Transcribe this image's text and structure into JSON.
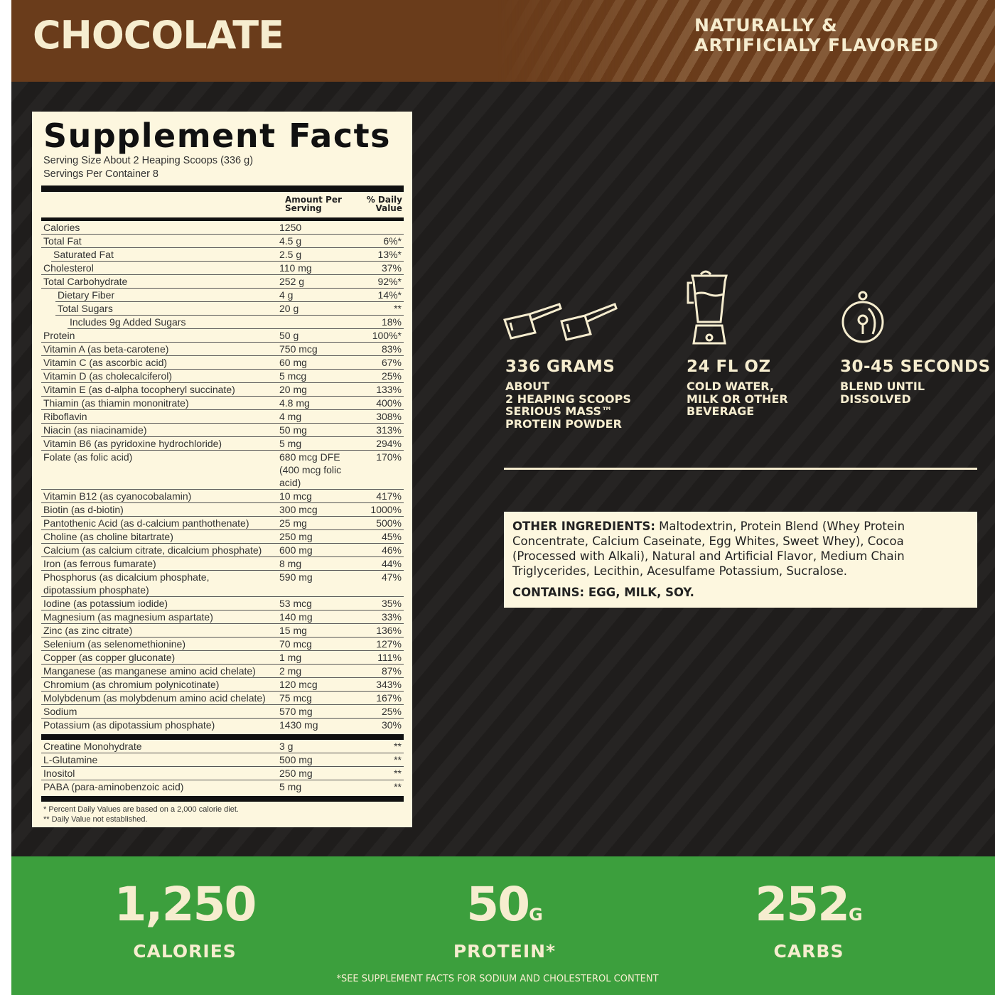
{
  "header": {
    "flavor": "CHOCOLATE",
    "note_line1": "NATURALLY &",
    "note_line2": "ARTIFICIALY FLAVORED"
  },
  "facts": {
    "title": "Supplement Facts",
    "serving_size": "Serving Size About 2 Heaping Scoops (336 g)",
    "servings_per_container": "Servings Per Container 8",
    "col_amount_1": "Amount Per",
    "col_amount_2": "Serving",
    "col_dv_1": "% Daily",
    "col_dv_2": "Value",
    "rows": [
      {
        "name": "Calories",
        "amount": "1250",
        "dv": "",
        "indent": 0
      },
      {
        "name": "Total Fat",
        "amount": "4.5 g",
        "dv": "6%*",
        "indent": 0
      },
      {
        "name": "Saturated Fat",
        "amount": "2.5 g",
        "dv": "13%*",
        "indent": 1
      },
      {
        "name": "Cholesterol",
        "amount": "110 mg",
        "dv": "37%",
        "indent": 0
      },
      {
        "name": "Total Carbohydrate",
        "amount": "252 g",
        "dv": "92%*",
        "indent": 0
      },
      {
        "name": "Dietary Fiber",
        "amount": "4 g",
        "dv": "14%*",
        "indent": 2
      },
      {
        "name": "Total Sugars",
        "amount": "20 g",
        "dv": "**",
        "indent": 2
      },
      {
        "name": "Includes 9g Added Sugars",
        "amount": "",
        "dv": "18%",
        "indent": 3
      },
      {
        "name": "Protein",
        "amount": "50 g",
        "dv": "100%*",
        "indent": 0
      },
      {
        "name": "Vitamin A (as beta-carotene)",
        "amount": "750 mcg",
        "dv": "83%",
        "indent": 0
      },
      {
        "name": "Vitamin C (as ascorbic acid)",
        "amount": "60 mg",
        "dv": "67%",
        "indent": 0
      },
      {
        "name": "Vitamin D (as cholecalciferol)",
        "amount": "5 mcg",
        "dv": "25%",
        "indent": 0
      },
      {
        "name": "Vitamin E (as d-alpha tocopheryl succinate)",
        "amount": "20 mg",
        "dv": "133%",
        "indent": 0
      },
      {
        "name": "Thiamin (as thiamin mononitrate)",
        "amount": "4.8 mg",
        "dv": "400%",
        "indent": 0
      },
      {
        "name": "Riboflavin",
        "amount": "4 mg",
        "dv": "308%",
        "indent": 0
      },
      {
        "name": "Niacin (as niacinamide)",
        "amount": "50 mg",
        "dv": "313%",
        "indent": 0
      },
      {
        "name": "Vitamin B6 (as pyridoxine hydrochloride)",
        "amount": "5 mg",
        "dv": "294%",
        "indent": 0
      },
      {
        "name": "Folate (as folic acid)",
        "amount": "680 mcg DFE\n(400 mcg folic acid)",
        "dv": "170%",
        "indent": 0
      },
      {
        "name": "Vitamin B12 (as cyanocobalamin)",
        "amount": "10 mcg",
        "dv": "417%",
        "indent": 0
      },
      {
        "name": "Biotin (as d-biotin)",
        "amount": "300 mcg",
        "dv": "1000%",
        "indent": 0
      },
      {
        "name": "Pantothenic Acid (as d-calcium panthothenate)",
        "amount": "25 mg",
        "dv": "500%",
        "indent": 0
      },
      {
        "name": "Choline (as choline bitartrate)",
        "amount": "250 mg",
        "dv": "45%",
        "indent": 0
      },
      {
        "name": "Calcium (as calcium citrate, dicalcium phosphate)",
        "amount": "600 mg",
        "dv": "46%",
        "indent": 0
      },
      {
        "name": "Iron (as ferrous fumarate)",
        "amount": "8 mg",
        "dv": "44%",
        "indent": 0
      },
      {
        "name": "Phosphorus (as dicalcium phosphate,\ndipotassium phosphate)",
        "amount": "590 mg",
        "dv": "47%",
        "indent": 0
      },
      {
        "name": "Iodine (as potassium iodide)",
        "amount": "53 mcg",
        "dv": "35%",
        "indent": 0
      },
      {
        "name": "Magnesium (as magnesium aspartate)",
        "amount": "140 mg",
        "dv": "33%",
        "indent": 0
      },
      {
        "name": "Zinc (as zinc citrate)",
        "amount": "15 mg",
        "dv": "136%",
        "indent": 0
      },
      {
        "name": "Selenium (as selenomethionine)",
        "amount": "70 mcg",
        "dv": "127%",
        "indent": 0
      },
      {
        "name": "Copper (as copper gluconate)",
        "amount": "1 mg",
        "dv": "111%",
        "indent": 0
      },
      {
        "name": "Manganese (as manganese amino acid chelate)",
        "amount": "2 mg",
        "dv": "87%",
        "indent": 0
      },
      {
        "name": "Chromium (as chromium polynicotinate)",
        "amount": "120 mcg",
        "dv": "343%",
        "indent": 0
      },
      {
        "name": "Molybdenum (as molybdenum amino acid chelate)",
        "amount": "75 mcg",
        "dv": "167%",
        "indent": 0
      },
      {
        "name": "Sodium",
        "amount": "570 mg",
        "dv": "25%",
        "indent": 0
      },
      {
        "name": "Potassium (as dipotassium phosphate)",
        "amount": "1430 mg",
        "dv": "30%",
        "indent": 0
      }
    ],
    "other_rows": [
      {
        "name": "Creatine Monohydrate",
        "amount": "3 g",
        "dv": "**"
      },
      {
        "name": "L-Glutamine",
        "amount": "500 mg",
        "dv": "**"
      },
      {
        "name": "Inositol",
        "amount": "250 mg",
        "dv": "**"
      },
      {
        "name": "PABA (para-aminobenzoic acid)",
        "amount": "5 mg",
        "dv": "**"
      }
    ],
    "footnote1": "* Percent Daily Values are based on a 2,000 calorie diet.",
    "footnote2": "** Daily Value not established."
  },
  "directions": [
    {
      "icon": "scoops-icon",
      "title": "336 GRAMS",
      "lines": [
        "ABOUT",
        "2 HEAPING SCOOPS",
        "SERIOUS MASS™",
        "PROTEIN POWDER"
      ]
    },
    {
      "icon": "blender-icon",
      "title": "24 FL OZ",
      "lines": [
        "COLD WATER,",
        "MILK OR OTHER",
        "BEVERAGE"
      ]
    },
    {
      "icon": "timer-icon",
      "title": "30-45 SECONDS",
      "lines": [
        "BLEND UNTIL",
        "DISSOLVED"
      ]
    }
  ],
  "ingredients": {
    "label": "OTHER INGREDIENTS:",
    "text": " Maltodextrin, Protein Blend (Whey Protein Concentrate, Calcium Caseinate, Egg Whites, Sweet Whey), Cocoa (Processed with Alkali), Natural and Artificial Flavor, Medium Chain Triglycerides, Lecithin, Acesulfame Potassium, Sucralose.",
    "contains": "CONTAINS: EGG, MILK, SOY."
  },
  "highlights": [
    {
      "value": "1,250",
      "unit": "",
      "label": "CALORIES"
    },
    {
      "value": "50",
      "unit": "G",
      "label": "PROTEIN*"
    },
    {
      "value": "252",
      "unit": "G",
      "label": "CARBS"
    }
  ],
  "footnote": "*SEE SUPPLEMENT FACTS FOR SODIUM AND CHOLESTEROL CONTENT",
  "colors": {
    "brown": "#6a3c1b",
    "dark": "#1f1d1c",
    "cream": "#fdf7df",
    "green": "#3c9f3d"
  }
}
